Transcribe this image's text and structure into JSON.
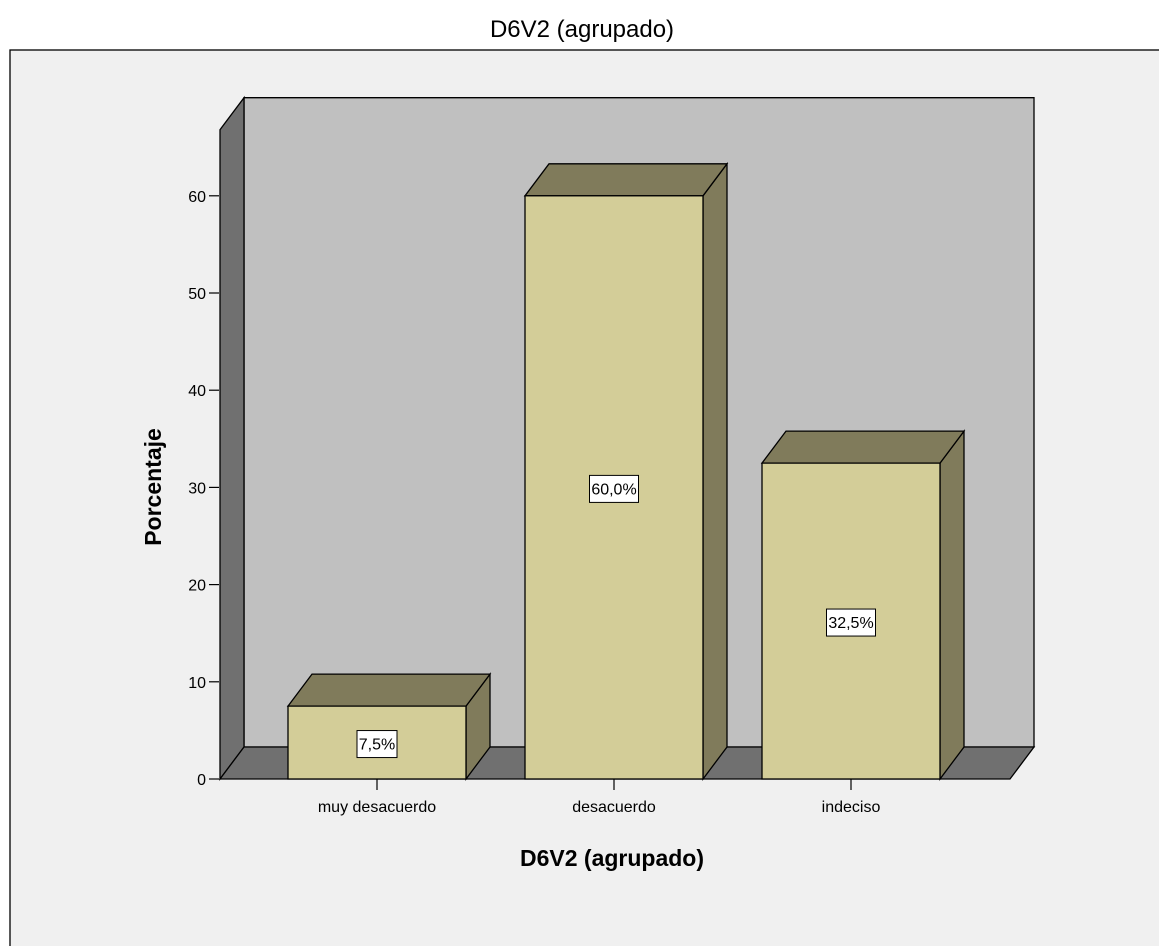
{
  "chart_data": {
    "type": "bar",
    "title": "D6V2 (agrupado)",
    "xlabel": "D6V2 (agrupado)",
    "ylabel": "Porcentaje",
    "categories": [
      "muy desacuerdo",
      "desacuerdo",
      "indeciso"
    ],
    "values": [
      7.5,
      60.0,
      32.5
    ],
    "data_labels": [
      "7,5%",
      "60,0%",
      "32,5%"
    ],
    "ylim": [
      0,
      60
    ],
    "yticks": [
      0,
      10,
      20,
      30,
      40,
      50,
      60
    ],
    "grid": false,
    "legend": "none",
    "style": "3d",
    "colors": {
      "bar_front": "#d3cd98",
      "bar_top": "#807b5b",
      "bar_side": "#807b5b",
      "plot_back": "#c0c0c0",
      "plot_wall": "#707070",
      "frame_bg": "#f0f0f0"
    }
  }
}
